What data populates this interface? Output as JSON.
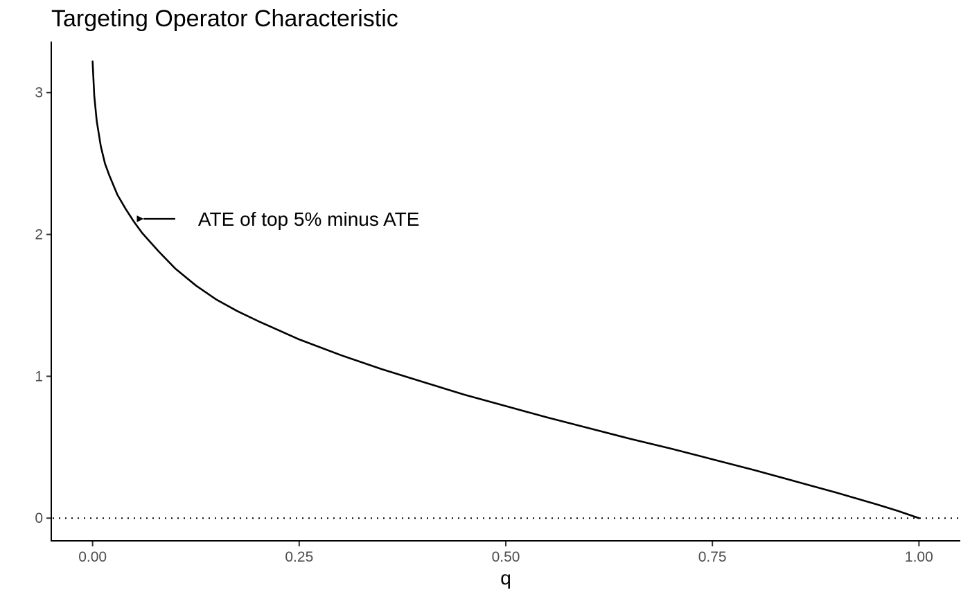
{
  "chart_data": {
    "type": "line",
    "title": "Targeting Operator Characteristic",
    "xlabel": "q",
    "ylabel": "",
    "xlim": [
      -0.05,
      1.05
    ],
    "ylim": [
      -0.16,
      3.36
    ],
    "x_ticks": [
      0.0,
      0.25,
      0.5,
      0.75,
      1.0
    ],
    "x_tick_labels": [
      "0.00",
      "0.25",
      "0.50",
      "0.75",
      "1.00"
    ],
    "y_ticks": [
      0,
      1,
      2,
      3
    ],
    "y_tick_labels": [
      "0",
      "1",
      "2",
      "3"
    ],
    "grid": false,
    "reference_line": {
      "y": 0,
      "style": "dotted",
      "color": "#000000"
    },
    "series": [
      {
        "color": "#000000",
        "x": [
          0.0,
          0.002,
          0.005,
          0.01,
          0.015,
          0.02,
          0.03,
          0.04,
          0.05,
          0.06,
          0.08,
          0.1,
          0.125,
          0.15,
          0.175,
          0.2,
          0.25,
          0.3,
          0.35,
          0.4,
          0.45,
          0.5,
          0.55,
          0.6,
          0.65,
          0.7,
          0.75,
          0.8,
          0.85,
          0.9,
          0.95,
          0.975,
          1.0
        ],
        "y": [
          3.22,
          2.98,
          2.8,
          2.62,
          2.5,
          2.42,
          2.28,
          2.18,
          2.09,
          2.01,
          1.88,
          1.76,
          1.64,
          1.54,
          1.46,
          1.39,
          1.26,
          1.15,
          1.05,
          0.96,
          0.87,
          0.79,
          0.71,
          0.635,
          0.56,
          0.49,
          0.415,
          0.34,
          0.26,
          0.18,
          0.095,
          0.05,
          0.0
        ]
      }
    ],
    "annotations": [
      {
        "text": "ATE of top 5% minus ATE",
        "x": 0.05,
        "y": 2.11,
        "arrow_from_x": 0.1
      }
    ]
  }
}
